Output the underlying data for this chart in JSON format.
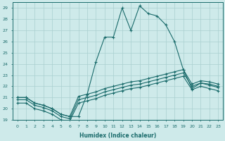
{
  "xlabel": "Humidex (Indice chaleur)",
  "background_color": "#ceeaea",
  "grid_color": "#aacfcf",
  "line_color": "#1a6b6b",
  "xlim": [
    -0.5,
    23.5
  ],
  "ylim": [
    19,
    29.5
  ],
  "xticks": [
    0,
    1,
    2,
    3,
    4,
    5,
    6,
    7,
    8,
    9,
    10,
    11,
    12,
    13,
    14,
    15,
    16,
    17,
    18,
    19,
    20,
    21,
    22,
    23
  ],
  "yticks": [
    19,
    20,
    21,
    22,
    23,
    24,
    25,
    26,
    27,
    28,
    29
  ],
  "lines": [
    {
      "x": [
        0,
        1,
        2,
        3,
        4,
        5,
        6,
        7,
        8,
        9,
        10,
        11,
        12,
        13,
        14,
        15,
        16,
        17,
        18,
        19,
        20,
        21,
        22,
        23
      ],
      "y": [
        21.0,
        21.0,
        20.5,
        20.3,
        20.0,
        19.5,
        19.3,
        19.3,
        21.3,
        24.2,
        26.4,
        26.4,
        29.0,
        27.0,
        29.2,
        28.5,
        28.3,
        27.5,
        26.0,
        23.5,
        21.8,
        22.3,
        22.2,
        22.0
      ]
    },
    {
      "x": [
        0,
        1,
        2,
        3,
        4,
        5,
        6,
        7,
        8,
        9,
        10,
        11,
        12,
        13,
        14,
        15,
        16,
        17,
        18,
        19,
        20,
        21,
        22,
        23
      ],
      "y": [
        21.0,
        21.0,
        20.5,
        20.3,
        20.0,
        19.5,
        19.3,
        21.1,
        21.3,
        21.5,
        21.8,
        22.0,
        22.2,
        22.4,
        22.5,
        22.7,
        22.9,
        23.1,
        23.3,
        23.5,
        22.2,
        22.5,
        22.4,
        22.2
      ]
    },
    {
      "x": [
        0,
        1,
        2,
        3,
        4,
        5,
        6,
        7,
        8,
        9,
        10,
        11,
        12,
        13,
        14,
        15,
        16,
        17,
        18,
        19,
        20,
        21,
        22,
        23
      ],
      "y": [
        20.8,
        20.8,
        20.3,
        20.1,
        19.8,
        19.3,
        19.1,
        20.8,
        21.0,
        21.2,
        21.5,
        21.7,
        21.9,
        22.1,
        22.2,
        22.4,
        22.6,
        22.8,
        23.0,
        23.2,
        22.0,
        22.3,
        22.1,
        21.9
      ]
    },
    {
      "x": [
        0,
        1,
        2,
        3,
        4,
        5,
        6,
        7,
        8,
        9,
        10,
        11,
        12,
        13,
        14,
        15,
        16,
        17,
        18,
        19,
        20,
        21,
        22,
        23
      ],
      "y": [
        20.5,
        20.5,
        20.0,
        19.8,
        19.5,
        19.0,
        18.9,
        20.5,
        20.7,
        20.9,
        21.2,
        21.4,
        21.6,
        21.8,
        21.9,
        22.1,
        22.3,
        22.5,
        22.7,
        22.9,
        21.7,
        22.0,
        21.8,
        21.6
      ]
    }
  ]
}
